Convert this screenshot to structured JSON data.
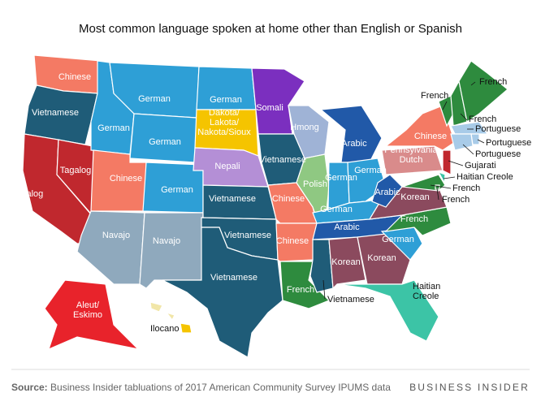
{
  "title": "Most common language spoken at home other than English or Spanish",
  "states": [
    {
      "label": "Chinese"
    },
    {
      "label": "Vietnamese"
    },
    {
      "label": "Tagalog"
    },
    {
      "label": "Tagalog"
    },
    {
      "label": "German"
    },
    {
      "label": "German"
    },
    {
      "label": "German"
    },
    {
      "label": "German"
    },
    {
      "label": "Dakota/\nLakota/\nNakota/Sioux"
    },
    {
      "label": "Somali"
    },
    {
      "label": "Chinese"
    },
    {
      "label": "German"
    },
    {
      "label": "Navajo"
    },
    {
      "label": "Navajo"
    },
    {
      "label": "Nepali"
    },
    {
      "label": "Vietnamese"
    },
    {
      "label": "Vietnamese"
    },
    {
      "label": "Vietnamese"
    },
    {
      "label": "Vietnamese"
    },
    {
      "label": "Chinese"
    },
    {
      "label": "Chinese"
    },
    {
      "label": "French"
    },
    {
      "label": "Vietnamese"
    },
    {
      "label": "Hmong"
    },
    {
      "label": "Polish"
    },
    {
      "label": "Arabic"
    },
    {
      "label": "German"
    },
    {
      "label": "German"
    },
    {
      "label": "German"
    },
    {
      "label": "Arabic"
    },
    {
      "label": "Korean"
    },
    {
      "label": "Korean"
    },
    {
      "label": "Haitian\nCreole"
    },
    {
      "label": "German"
    },
    {
      "label": "French"
    },
    {
      "label": "Korean"
    },
    {
      "label": "Arabic"
    },
    {
      "label": "Pennsylvania\nDutch"
    },
    {
      "label": "Chinese"
    },
    {
      "label": "French"
    },
    {
      "label": "French"
    },
    {
      "label": "French"
    },
    {
      "label": "Portuguese"
    },
    {
      "label": "Portuguese"
    },
    {
      "label": "Portuguese"
    },
    {
      "label": "Gujarati"
    },
    {
      "label": "Haitian Creole"
    },
    {
      "label": "French"
    },
    {
      "label": "French"
    },
    {
      "label": "Aleut/\nEskimo"
    },
    {
      "label": "Ilocano"
    }
  ],
  "source": {
    "lead": "Source:",
    "text": " Business Insider tabluations of 2017 American Community Survey IPUMS data"
  },
  "brand": "BUSINESS INSIDER"
}
